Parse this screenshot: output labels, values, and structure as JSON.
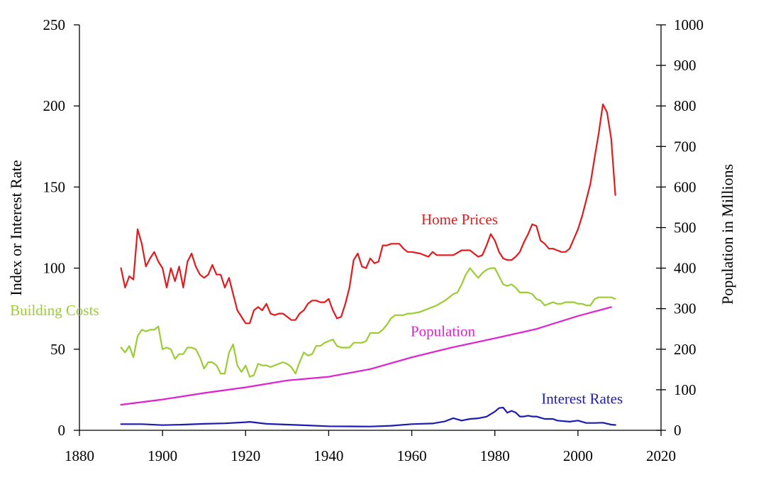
{
  "chart_data": {
    "type": "line",
    "title": "",
    "xlabel": "",
    "ylabel": "Index or Interest Rate",
    "y2label": "Population in Millions",
    "xlim": [
      1880,
      2020
    ],
    "ylim": [
      0,
      250
    ],
    "y2lim": [
      0,
      1000
    ],
    "x_ticks": [
      1880,
      1900,
      1920,
      1940,
      1960,
      1980,
      2000,
      2020
    ],
    "y_ticks": [
      0,
      50,
      100,
      150,
      200,
      250
    ],
    "y2_ticks": [
      0,
      100,
      200,
      300,
      400,
      500,
      600,
      700,
      800,
      900,
      1000
    ],
    "grid": false,
    "series": [
      {
        "name": "Home Prices",
        "axis": "left",
        "color": "#e31a1c",
        "x": [
          1890,
          1891,
          1892,
          1893,
          1894,
          1895,
          1896,
          1897,
          1898,
          1899,
          1900,
          1901,
          1902,
          1903,
          1904,
          1905,
          1906,
          1907,
          1908,
          1909,
          1910,
          1911,
          1912,
          1913,
          1914,
          1915,
          1916,
          1917,
          1918,
          1919,
          1920,
          1921,
          1922,
          1923,
          1924,
          1925,
          1926,
          1927,
          1928,
          1929,
          1930,
          1931,
          1932,
          1933,
          1934,
          1935,
          1936,
          1937,
          1938,
          1939,
          1940,
          1941,
          1942,
          1943,
          1944,
          1945,
          1946,
          1947,
          1948,
          1949,
          1950,
          1951,
          1952,
          1953,
          1954,
          1955,
          1956,
          1957,
          1958,
          1959,
          1960,
          1962,
          1964,
          1965,
          1966,
          1968,
          1970,
          1972,
          1974,
          1976,
          1977,
          1978,
          1979,
          1980,
          1981,
          1982,
          1983,
          1984,
          1985,
          1986,
          1987,
          1988,
          1989,
          1990,
          1991,
          1992,
          1993,
          1994,
          1995,
          1996,
          1997,
          1998,
          1999,
          2000,
          2001,
          2002,
          2003,
          2004,
          2005,
          2006,
          2007,
          2008,
          2009
        ],
        "values": [
          100,
          88,
          95,
          93,
          124,
          115,
          101,
          106,
          110,
          104,
          100,
          88,
          100,
          92,
          101,
          88,
          104,
          109,
          101,
          96,
          94,
          96,
          102,
          96,
          96,
          88,
          94,
          84,
          74,
          70,
          66,
          66,
          74,
          76,
          74,
          78,
          72,
          71,
          72,
          72,
          70,
          68,
          68,
          72,
          74,
          78,
          80,
          80,
          79,
          79,
          81,
          74,
          69,
          70,
          78,
          88,
          105,
          109,
          101,
          100,
          106,
          103,
          104,
          114,
          114,
          115,
          115,
          115,
          112,
          110,
          110,
          109,
          107,
          110,
          108,
          108,
          108,
          111,
          111,
          107,
          108,
          114,
          121,
          117,
          110,
          106,
          105,
          105,
          107,
          110,
          116,
          121,
          127,
          126,
          117,
          115,
          112,
          112,
          111,
          110,
          110,
          112,
          118,
          124,
          132,
          142,
          152,
          168,
          183,
          201,
          196,
          180,
          145
        ]
      },
      {
        "name": "Building Costs",
        "axis": "left",
        "color": "#9acd32",
        "x": [
          1890,
          1891,
          1892,
          1893,
          1894,
          1895,
          1896,
          1897,
          1898,
          1899,
          1900,
          1901,
          1902,
          1903,
          1904,
          1905,
          1906,
          1907,
          1908,
          1909,
          1910,
          1911,
          1912,
          1913,
          1914,
          1915,
          1916,
          1917,
          1918,
          1919,
          1920,
          1921,
          1922,
          1923,
          1924,
          1925,
          1926,
          1927,
          1928,
          1929,
          1930,
          1931,
          1932,
          1933,
          1934,
          1935,
          1936,
          1937,
          1938,
          1939,
          1940,
          1941,
          1942,
          1943,
          1944,
          1945,
          1946,
          1947,
          1948,
          1949,
          1950,
          1951,
          1952,
          1953,
          1954,
          1955,
          1956,
          1957,
          1958,
          1959,
          1960,
          1962,
          1964,
          1966,
          1968,
          1969,
          1970,
          1971,
          1972,
          1973,
          1974,
          1975,
          1976,
          1977,
          1978,
          1979,
          1980,
          1981,
          1982,
          1983,
          1984,
          1985,
          1986,
          1987,
          1988,
          1989,
          1990,
          1991,
          1992,
          1993,
          1994,
          1995,
          1996,
          1997,
          1998,
          1999,
          2000,
          2001,
          2002,
          2003,
          2004,
          2005,
          2006,
          2007,
          2008,
          2009
        ],
        "values": [
          51,
          48,
          52,
          45,
          58,
          62,
          61,
          62,
          62,
          64,
          50,
          51,
          50,
          44,
          47,
          47,
          51,
          51,
          50,
          45,
          38,
          42,
          42,
          40,
          35,
          35,
          48,
          53,
          40,
          36,
          40,
          33,
          34,
          41,
          40,
          40,
          39,
          40,
          41,
          42,
          41,
          39,
          35,
          42,
          48,
          46,
          47,
          52,
          52,
          54,
          55,
          56,
          52,
          51,
          51,
          51,
          54,
          54,
          54,
          55,
          60,
          60,
          60,
          62,
          65,
          69,
          71,
          71,
          71,
          72,
          72,
          73,
          75,
          77,
          80,
          82,
          84,
          85,
          90,
          96,
          100,
          97,
          94,
          97,
          99,
          100,
          100,
          95,
          90,
          89,
          90,
          88,
          85,
          85,
          85,
          84,
          81,
          80,
          77,
          78,
          79,
          78,
          78,
          79,
          79,
          79,
          78,
          78,
          77,
          77,
          81,
          82,
          82,
          82,
          82,
          81
        ]
      },
      {
        "name": "Population",
        "axis": "right",
        "color": "#e020d0",
        "x": [
          1890,
          1900,
          1910,
          1920,
          1930,
          1940,
          1950,
          1960,
          1970,
          1980,
          1990,
          2000,
          2008
        ],
        "values": [
          63,
          76,
          92,
          106,
          123,
          132,
          151,
          180,
          205,
          227,
          250,
          282,
          304
        ]
      },
      {
        "name": "Interest Rates",
        "axis": "left",
        "color": "#1c1cb0",
        "x": [
          1890,
          1895,
          1900,
          1905,
          1910,
          1915,
          1920,
          1921,
          1925,
          1930,
          1935,
          1940,
          1945,
          1950,
          1955,
          1960,
          1965,
          1968,
          1970,
          1972,
          1974,
          1976,
          1978,
          1980,
          1981,
          1982,
          1983,
          1984,
          1985,
          1986,
          1987,
          1988,
          1989,
          1990,
          1992,
          1994,
          1995,
          1998,
          2000,
          2002,
          2004,
          2006,
          2008,
          2009
        ],
        "values": [
          3.8,
          3.8,
          3.2,
          3.5,
          4.0,
          4.3,
          5.0,
          5.2,
          4.0,
          3.5,
          3.0,
          2.5,
          2.4,
          2.3,
          2.8,
          3.8,
          4.2,
          5.5,
          7.5,
          6.0,
          7.0,
          7.4,
          8.4,
          11.5,
          13.7,
          14.0,
          10.8,
          12.0,
          11.0,
          8.5,
          8.5,
          9.0,
          8.5,
          8.5,
          7.0,
          7.0,
          6.0,
          5.3,
          6.0,
          4.5,
          4.5,
          4.7,
          3.5,
          3.3
        ]
      }
    ],
    "annotations": [
      {
        "text": "Home Prices",
        "x": 1971.5,
        "y": 127,
        "color": "#e31a1c"
      },
      {
        "text": "Building Costs",
        "x": 1874,
        "y": 71,
        "color": "#9acd32"
      },
      {
        "text": "Population",
        "x": 1967.5,
        "y": 58,
        "color": "#e020d0"
      },
      {
        "text": "Interest Rates",
        "x": 2001,
        "y": 16.5,
        "color": "#1c1cb0"
      }
    ]
  }
}
